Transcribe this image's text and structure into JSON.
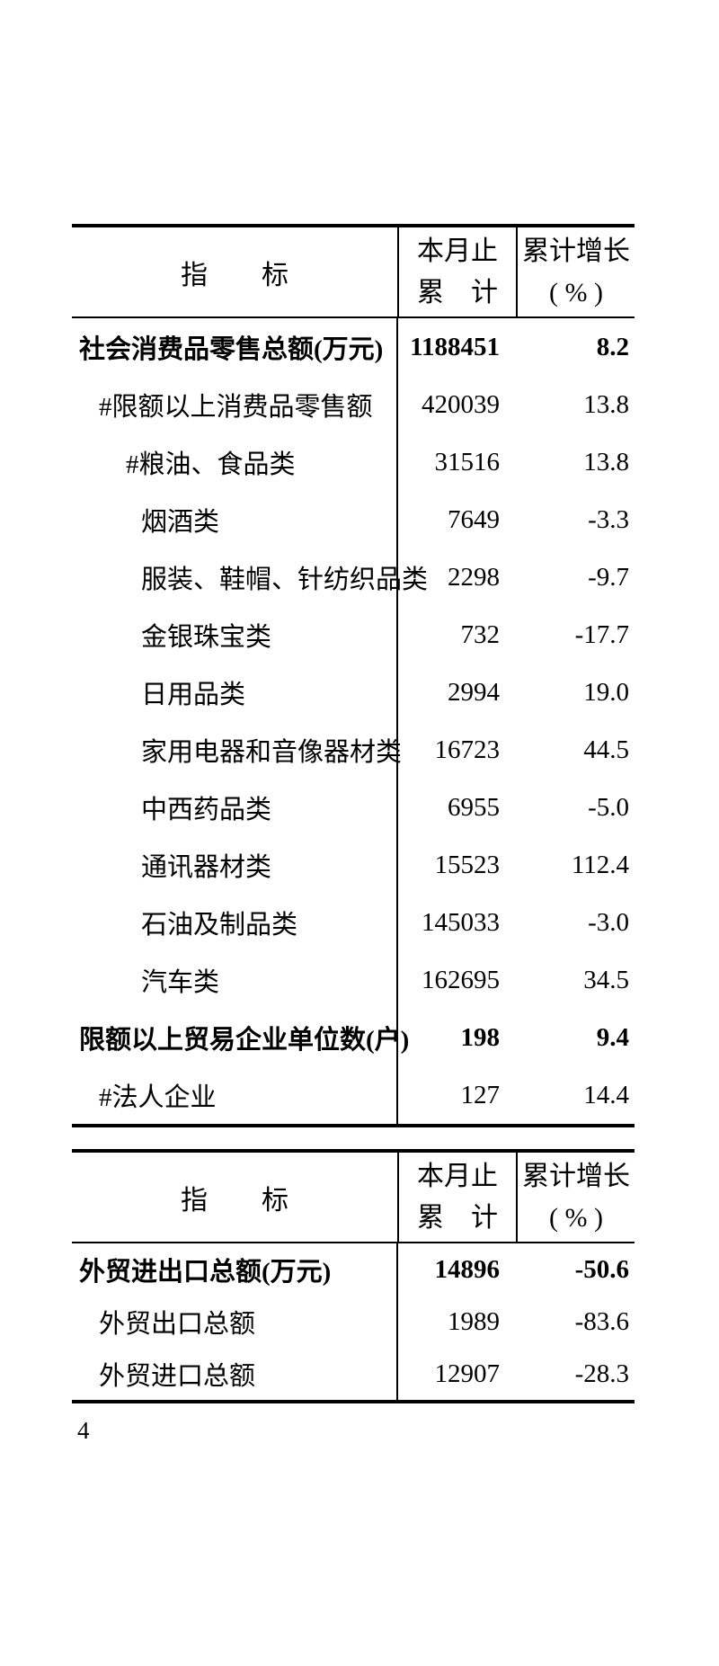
{
  "page": {
    "number": "4",
    "background_color": "#ffffff",
    "text_color": "#000000",
    "line_color": "#000000"
  },
  "tables": [
    {
      "name": "retail-trade-table",
      "header": {
        "indicator": "指　　标",
        "col2_line1": "本月止",
        "col2_line2": "累　计",
        "col3_line1": "累计增长",
        "col3_line2": "( % )"
      },
      "rows": [
        {
          "label": "社会消费品零售总额(万元)",
          "value": "1188451",
          "growth": "8.2",
          "bold": true,
          "indent": 0
        },
        {
          "label": "#限额以上消费品零售额",
          "value": "420039",
          "growth": "13.8",
          "bold": false,
          "indent": 1
        },
        {
          "label": "#粮油、食品类",
          "value": "31516",
          "growth": "13.8",
          "bold": false,
          "indent": 2
        },
        {
          "label": "烟酒类",
          "value": "7649",
          "growth": "-3.3",
          "bold": false,
          "indent": 3
        },
        {
          "label": "服装、鞋帽、针纺织品类",
          "value": "2298",
          "growth": "-9.7",
          "bold": false,
          "indent": 3
        },
        {
          "label": "金银珠宝类",
          "value": "732",
          "growth": "-17.7",
          "bold": false,
          "indent": 3
        },
        {
          "label": "日用品类",
          "value": "2994",
          "growth": "19.0",
          "bold": false,
          "indent": 3
        },
        {
          "label": "家用电器和音像器材类",
          "value": "16723",
          "growth": "44.5",
          "bold": false,
          "indent": 3
        },
        {
          "label": "中西药品类",
          "value": "6955",
          "growth": "-5.0",
          "bold": false,
          "indent": 3
        },
        {
          "label": "通讯器材类",
          "value": "15523",
          "growth": "112.4",
          "bold": false,
          "indent": 3
        },
        {
          "label": "石油及制品类",
          "value": "145033",
          "growth": "-3.0",
          "bold": false,
          "indent": 3
        },
        {
          "label": "汽车类",
          "value": "162695",
          "growth": "34.5",
          "bold": false,
          "indent": 3
        },
        {
          "label": "限额以上贸易企业单位数(户)",
          "value": "198",
          "growth": "9.4",
          "bold": true,
          "indent": 0
        },
        {
          "label": "#法人企业",
          "value": "127",
          "growth": "14.4",
          "bold": false,
          "indent": 1
        }
      ]
    },
    {
      "name": "foreign-trade-table",
      "header": {
        "indicator": "指　　标",
        "col2_line1": "本月止",
        "col2_line2": "累　计",
        "col3_line1": "累计增长",
        "col3_line2": "( % )"
      },
      "rows": [
        {
          "label": "外贸进出口总额(万元)",
          "value": "14896",
          "growth": "-50.6",
          "bold": true,
          "indent": 0
        },
        {
          "label": "外贸出口总额",
          "value": "1989",
          "growth": "-83.6",
          "bold": false,
          "indent": 1
        },
        {
          "label": "外贸进口总额",
          "value": "12907",
          "growth": "-28.3",
          "bold": false,
          "indent": 1
        }
      ]
    }
  ]
}
